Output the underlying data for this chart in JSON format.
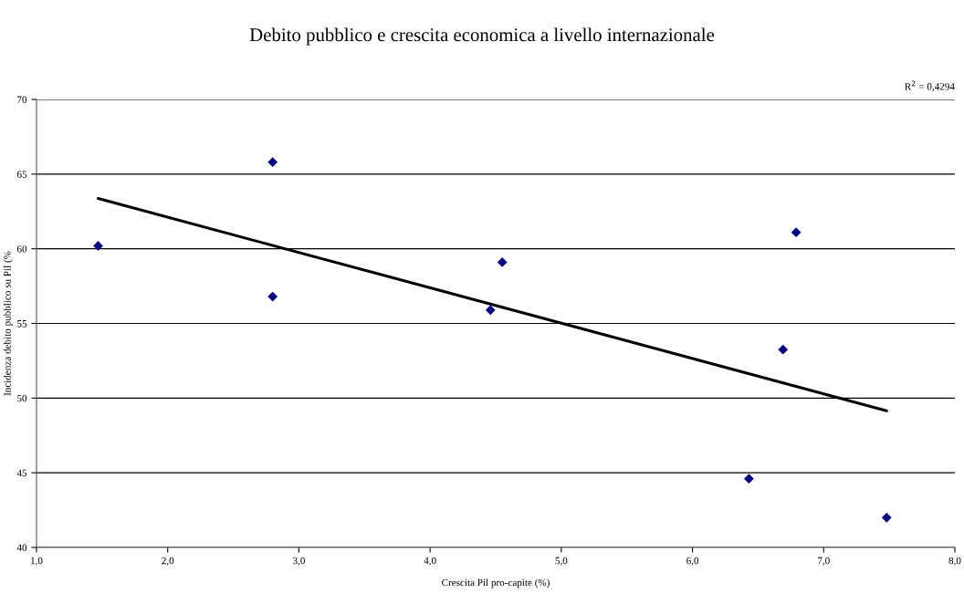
{
  "chart_data": {
    "type": "scatter",
    "title": "Debito pubblico e crescita economica a livello internazionale",
    "xlabel": "Crescita Pil pro-capite (%)",
    "ylabel": "Incidenza debito pubblico su Pil (%",
    "annotations": [
      "R$^{2}$ = 0,4294"
    ],
    "series": [
      {
        "type": "scatter",
        "color": "#000080",
        "marker": "diamond",
        "x": [
          1.47,
          2.8,
          2.8,
          4.46,
          4.55,
          6.43,
          6.69,
          6.79,
          7.48
        ],
        "values": [
          60.2,
          65.8,
          56.8,
          55.9,
          59.1,
          44.6,
          53.25,
          61.1,
          42.0
        ]
      },
      {
        "type": "line",
        "color": "#000000",
        "line_style": "solid",
        "x": [
          1.47,
          7.48
        ],
        "values": [
          63.37,
          49.15
        ]
      }
    ],
    "xlim": [
      1,
      8
    ],
    "xticks": [
      {
        "value": 1,
        "label": "1,0"
      },
      {
        "value": 2,
        "label": "2,0"
      },
      {
        "value": 3,
        "label": "3,0"
      },
      {
        "value": 4,
        "label": "4,0"
      },
      {
        "value": 5,
        "label": "5,0"
      },
      {
        "value": 6,
        "label": "6,0"
      },
      {
        "value": 7,
        "label": "7,0"
      },
      {
        "value": 8,
        "label": "8,0"
      }
    ],
    "ylim": [
      40,
      70
    ],
    "yticks": [
      40,
      45,
      50,
      55,
      60,
      65,
      70
    ],
    "grid": "y"
  }
}
